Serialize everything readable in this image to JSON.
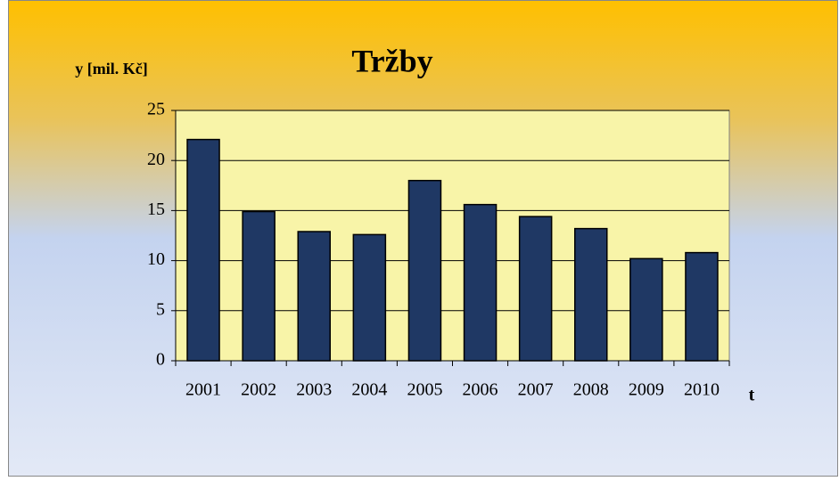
{
  "chart_data": {
    "type": "bar",
    "title": "Tržby",
    "y_label": "y [mil. Kč]",
    "x_label": "t",
    "categories": [
      "2001",
      "2002",
      "2003",
      "2004",
      "2005",
      "2006",
      "2007",
      "2008",
      "2009",
      "2010"
    ],
    "values": [
      22.1,
      14.9,
      12.9,
      12.6,
      18.0,
      15.6,
      14.4,
      13.2,
      10.2,
      10.8
    ],
    "color": "#1f3864",
    "ylim": [
      0,
      25
    ],
    "yticks": [
      0,
      5,
      10,
      15,
      20,
      25
    ],
    "grid": true
  }
}
